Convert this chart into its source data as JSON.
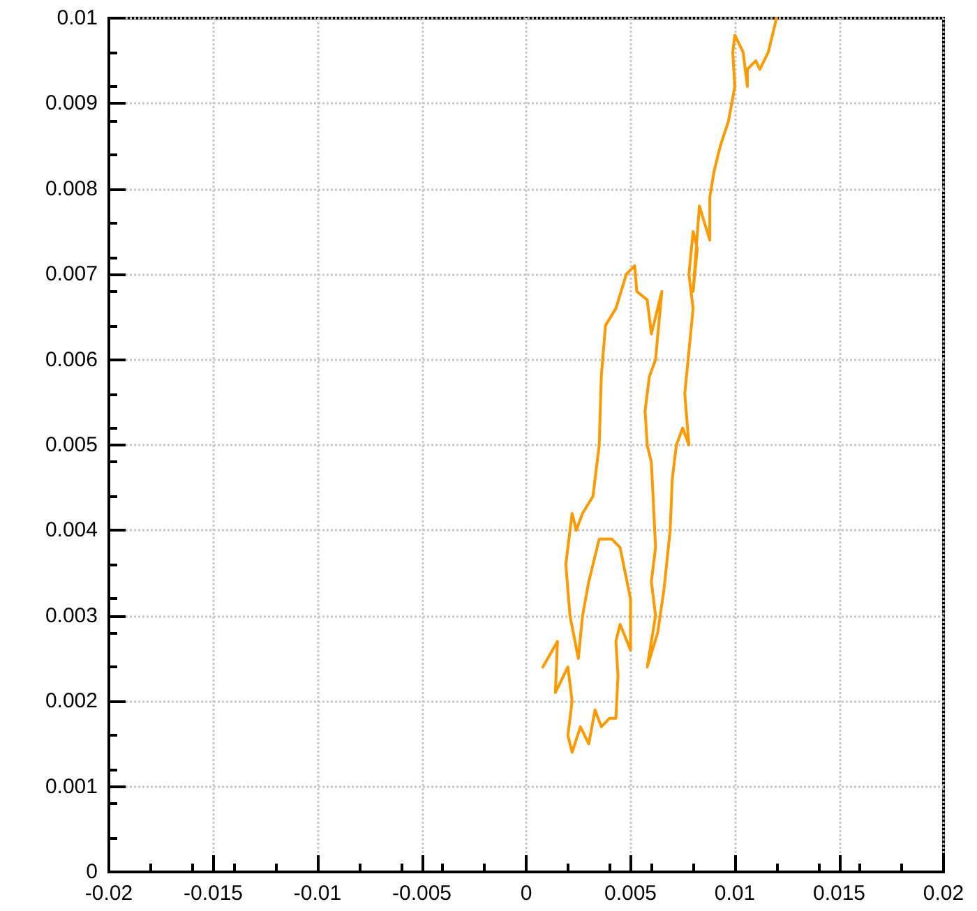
{
  "chart_data": {
    "type": "line",
    "color": "#ff9900",
    "grid": true,
    "marker": "none",
    "line_style": "solid",
    "xlim": [
      -0.02,
      0.02
    ],
    "xticks": [
      -0.02,
      -0.015,
      -0.01,
      -0.005,
      0,
      0.005,
      0.01,
      0.015,
      0.02
    ],
    "ylim": [
      0,
      0.01
    ],
    "yticks": [
      0,
      0.001,
      0.002,
      0.003,
      0.004,
      0.005,
      0.006,
      0.007,
      0.008,
      0.009,
      0.01
    ],
    "x": [
      0.0008,
      0.0015,
      0.0014,
      0.002,
      0.0022,
      0.002,
      0.0022,
      0.0026,
      0.003,
      0.0033,
      0.0036,
      0.004,
      0.0043,
      0.0044,
      0.0043,
      0.0045,
      0.005,
      0.005,
      0.0045,
      0.0041,
      0.0035,
      0.003,
      0.0027,
      0.0025,
      0.0021,
      0.0019,
      0.0022,
      0.0024,
      0.0027,
      0.0032,
      0.0035,
      0.0036,
      0.0038,
      0.0043,
      0.0048,
      0.0052,
      0.0053,
      0.0058,
      0.006,
      0.0063,
      0.0065,
      0.0062,
      0.0059,
      0.0057,
      0.0058,
      0.006,
      0.0061,
      0.0062,
      0.006,
      0.0062,
      0.0058,
      0.0063,
      0.0066,
      0.0069,
      0.007,
      0.0072,
      0.0075,
      0.0078,
      0.0076,
      0.0078,
      0.008,
      0.0078,
      0.008,
      0.0082,
      0.008,
      0.0083,
      0.0088,
      0.0088,
      0.009,
      0.0093,
      0.0097,
      0.01,
      0.0099,
      0.01,
      0.0104,
      0.0106,
      0.0106,
      0.011,
      0.0112,
      0.0116,
      0.012
    ],
    "values": [
      0.0024,
      0.0027,
      0.0021,
      0.0024,
      0.002,
      0.0016,
      0.0014,
      0.0017,
      0.0015,
      0.0019,
      0.0017,
      0.0018,
      0.0018,
      0.0023,
      0.0027,
      0.0029,
      0.0026,
      0.0032,
      0.0038,
      0.0039,
      0.0039,
      0.0034,
      0.003,
      0.0025,
      0.003,
      0.0036,
      0.0042,
      0.004,
      0.0042,
      0.0044,
      0.005,
      0.0058,
      0.0064,
      0.0066,
      0.007,
      0.0071,
      0.0068,
      0.0067,
      0.0063,
      0.0066,
      0.0068,
      0.006,
      0.0058,
      0.0054,
      0.005,
      0.0048,
      0.0043,
      0.0038,
      0.0034,
      0.003,
      0.0024,
      0.0028,
      0.0033,
      0.004,
      0.0046,
      0.005,
      0.0052,
      0.005,
      0.0056,
      0.0061,
      0.0066,
      0.007,
      0.0075,
      0.0073,
      0.0068,
      0.0078,
      0.0074,
      0.0079,
      0.0082,
      0.0085,
      0.0088,
      0.0092,
      0.0096,
      0.0098,
      0.0096,
      0.0092,
      0.0094,
      0.0095,
      0.0094,
      0.0096,
      0.01
    ]
  }
}
